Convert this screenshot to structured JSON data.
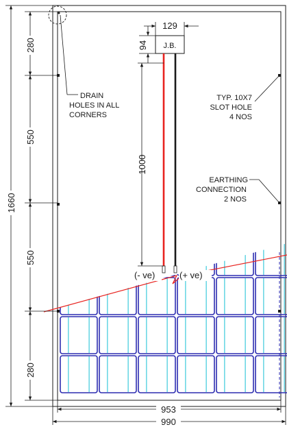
{
  "dims": {
    "d280top": "280",
    "d550a": "550",
    "d550b": "550",
    "d280bot": "280",
    "d1660": "1660",
    "d1000": "1000",
    "d129": "129",
    "d94": "94",
    "d953": "953",
    "d990": "990"
  },
  "labels": {
    "jb": "J.B.",
    "drain": [
      "DRAIN",
      "HOLES IN ALL",
      "CORNERS"
    ],
    "slot": [
      "TYP. 10X7",
      "SLOT HOLE",
      "4 NOS"
    ],
    "earth": [
      "EARTHING",
      "CONNECTION",
      "2 NOS"
    ],
    "neg": "(- ve)",
    "pos": "(+ ve)"
  },
  "colors": {
    "line": "#1a1a1a",
    "red_wire": "#e8231f",
    "cell_blue": "#2b2bb0",
    "cell_cyan": "#29c4d8",
    "break_line": "#e8231f"
  }
}
